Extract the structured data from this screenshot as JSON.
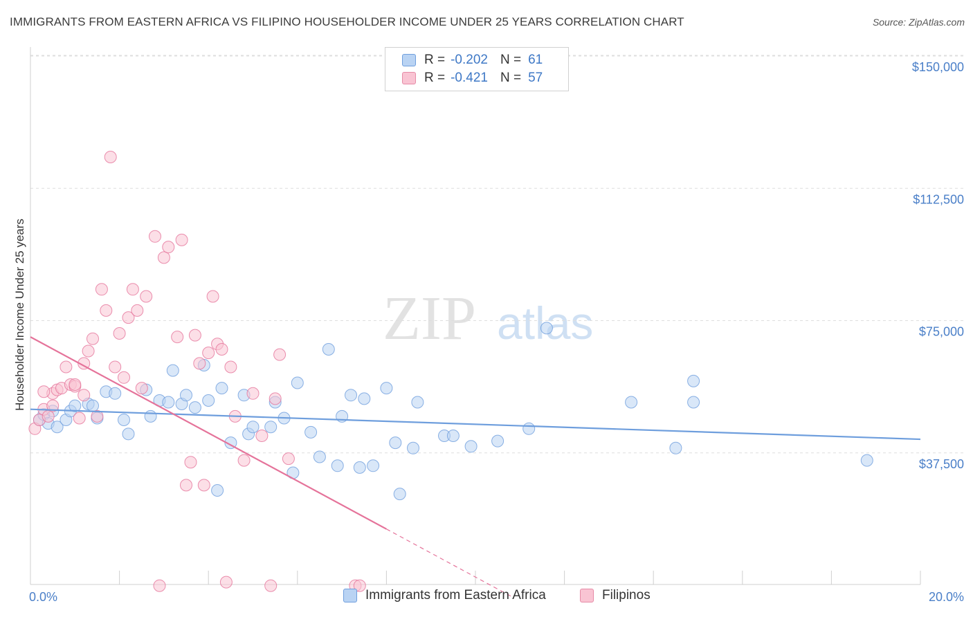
{
  "title": "IMMIGRANTS FROM EASTERN AFRICA VS FILIPINO HOUSEHOLDER INCOME UNDER 25 YEARS CORRELATION CHART",
  "source": "Source: ZipAtlas.com",
  "watermark": {
    "zip": "ZIP",
    "atlas": "atlas"
  },
  "legend": {
    "r_label": "R =",
    "n_label": "N =",
    "series": [
      {
        "name": "Immigrants from Eastern Africa",
        "r": "-0.202",
        "n": "61",
        "fill": "#b9d3f3",
        "stroke": "#6e9edd"
      },
      {
        "name": "Filipinos",
        "r": "-0.421",
        "n": "57",
        "fill": "#f9c4d3",
        "stroke": "#e68aa6"
      }
    ]
  },
  "chart_data": {
    "type": "scatter",
    "title": "IMMIGRANTS FROM EASTERN AFRICA VS FILIPINO HOUSEHOLDER INCOME UNDER 25 YEARS CORRELATION CHART",
    "xlabel": "",
    "ylabel": "Householder Income Under 25 years",
    "xlim": [
      0,
      20
    ],
    "ylim": [
      0,
      150000
    ],
    "x_tick_labels": [
      {
        "value": 0,
        "label": "0.0%"
      },
      {
        "value": 20,
        "label": "20.0%"
      }
    ],
    "y_tick_labels": [
      {
        "value": 150000,
        "label": "$150,000"
      },
      {
        "value": 112500,
        "label": "$112,500"
      },
      {
        "value": 75000,
        "label": "$75,000"
      },
      {
        "value": 37500,
        "label": "$37,500"
      }
    ],
    "grid": true,
    "series": [
      {
        "name": "Immigrants from Eastern Africa",
        "color": "#6e9edd",
        "fill": "#b9d3f3",
        "trend": {
          "x0": 0.0,
          "y0": 53000,
          "x1": 20.0,
          "y1": 44500,
          "solid_to": 20.0
        },
        "points": [
          [
            0.2,
            50000
          ],
          [
            0.3,
            51500
          ],
          [
            0.4,
            49000
          ],
          [
            0.5,
            52500
          ],
          [
            0.6,
            48000
          ],
          [
            0.8,
            50000
          ],
          [
            0.9,
            52500
          ],
          [
            1.0,
            54000
          ],
          [
            1.3,
            54500
          ],
          [
            1.4,
            54000
          ],
          [
            1.5,
            50500
          ],
          [
            1.7,
            58000
          ],
          [
            1.9,
            57500
          ],
          [
            2.1,
            50000
          ],
          [
            2.2,
            46000
          ],
          [
            2.6,
            58500
          ],
          [
            2.7,
            51000
          ],
          [
            2.9,
            55500
          ],
          [
            3.1,
            55000
          ],
          [
            3.2,
            64000
          ],
          [
            3.4,
            54500
          ],
          [
            3.5,
            57000
          ],
          [
            3.7,
            53500
          ],
          [
            3.9,
            65500
          ],
          [
            4.0,
            55500
          ],
          [
            4.2,
            30000
          ],
          [
            4.3,
            59000
          ],
          [
            4.5,
            43500
          ],
          [
            4.8,
            57000
          ],
          [
            4.9,
            46000
          ],
          [
            5.0,
            48000
          ],
          [
            5.4,
            48000
          ],
          [
            5.5,
            55000
          ],
          [
            5.7,
            50500
          ],
          [
            5.9,
            35000
          ],
          [
            6.0,
            60500
          ],
          [
            6.3,
            46500
          ],
          [
            6.5,
            39500
          ],
          [
            6.7,
            70000
          ],
          [
            6.9,
            37000
          ],
          [
            7.0,
            51000
          ],
          [
            7.2,
            57000
          ],
          [
            7.4,
            36500
          ],
          [
            7.5,
            56000
          ],
          [
            7.7,
            37000
          ],
          [
            8.0,
            59000
          ],
          [
            8.2,
            43500
          ],
          [
            8.3,
            29000
          ],
          [
            8.6,
            42000
          ],
          [
            8.7,
            55000
          ],
          [
            9.3,
            45500
          ],
          [
            9.5,
            45500
          ],
          [
            9.9,
            42500
          ],
          [
            10.5,
            44000
          ],
          [
            11.2,
            47500
          ],
          [
            11.6,
            76000
          ],
          [
            13.5,
            55000
          ],
          [
            14.5,
            42000
          ],
          [
            14.9,
            61000
          ],
          [
            14.9,
            55000
          ],
          [
            18.8,
            38500
          ]
        ]
      },
      {
        "name": "Filipinos",
        "color": "#e5739a",
        "fill": "#f9c4d3",
        "trend": {
          "x0": 0.0,
          "y0": 73500,
          "x1": 10.8,
          "y1": 0,
          "solid_to": 8.0
        },
        "points": [
          [
            0.1,
            47500
          ],
          [
            0.2,
            50000
          ],
          [
            0.3,
            53000
          ],
          [
            0.4,
            51000
          ],
          [
            0.5,
            57500
          ],
          [
            0.6,
            58500
          ],
          [
            0.7,
            59000
          ],
          [
            0.8,
            65000
          ],
          [
            0.9,
            60000
          ],
          [
            1.0,
            59500
          ],
          [
            1.1,
            50500
          ],
          [
            1.2,
            57000
          ],
          [
            1.2,
            66000
          ],
          [
            1.3,
            69500
          ],
          [
            1.4,
            73000
          ],
          [
            1.5,
            51000
          ],
          [
            1.6,
            87000
          ],
          [
            1.7,
            81000
          ],
          [
            1.8,
            124500
          ],
          [
            1.9,
            65000
          ],
          [
            2.0,
            74500
          ],
          [
            2.1,
            62000
          ],
          [
            2.2,
            79000
          ],
          [
            2.3,
            87000
          ],
          [
            2.4,
            81000
          ],
          [
            2.5,
            59000
          ],
          [
            2.6,
            85000
          ],
          [
            2.8,
            102000
          ],
          [
            2.9,
            3000
          ],
          [
            3.0,
            96000
          ],
          [
            3.1,
            99000
          ],
          [
            3.3,
            73500
          ],
          [
            3.4,
            101000
          ],
          [
            3.5,
            31500
          ],
          [
            3.6,
            38000
          ],
          [
            3.7,
            74000
          ],
          [
            3.8,
            66000
          ],
          [
            3.9,
            31500
          ],
          [
            4.0,
            69000
          ],
          [
            4.1,
            85000
          ],
          [
            4.2,
            71500
          ],
          [
            4.3,
            70000
          ],
          [
            4.4,
            4000
          ],
          [
            4.5,
            65000
          ],
          [
            4.6,
            51000
          ],
          [
            4.8,
            38500
          ],
          [
            5.0,
            57500
          ],
          [
            5.2,
            45500
          ],
          [
            5.4,
            3000
          ],
          [
            5.5,
            56000
          ],
          [
            5.6,
            68500
          ],
          [
            5.8,
            39000
          ],
          [
            7.3,
            3000
          ],
          [
            7.4,
            3000
          ],
          [
            0.3,
            58000
          ],
          [
            1.0,
            60000
          ],
          [
            0.5,
            54000
          ]
        ]
      }
    ]
  }
}
